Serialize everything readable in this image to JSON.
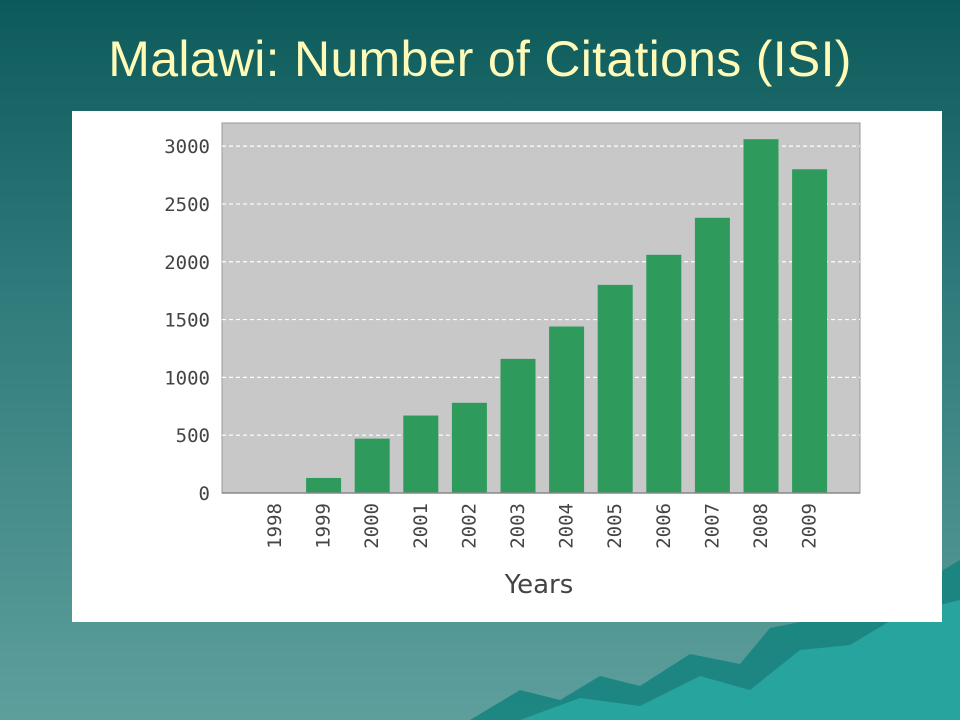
{
  "slide": {
    "title": "Malawi: Number of Citations (ISI)"
  },
  "colors": {
    "bar": "#2e9b5c",
    "plot_bg": "#c8c8c8",
    "title": "#fffab8"
  },
  "chart_data": {
    "type": "bar",
    "title": "",
    "xlabel": "Years",
    "ylabel": "",
    "categories": [
      "1998",
      "1999",
      "2000",
      "2001",
      "2002",
      "2003",
      "2004",
      "2005",
      "2006",
      "2007",
      "2008",
      "2009"
    ],
    "values": [
      0,
      130,
      470,
      670,
      780,
      1160,
      1440,
      1800,
      2060,
      2380,
      3060,
      2800
    ],
    "ylim": [
      0,
      3200
    ],
    "yticks": [
      "0",
      "500",
      "1000",
      "1500",
      "2000",
      "2500",
      "3000"
    ],
    "grid": true,
    "legend": "none"
  }
}
